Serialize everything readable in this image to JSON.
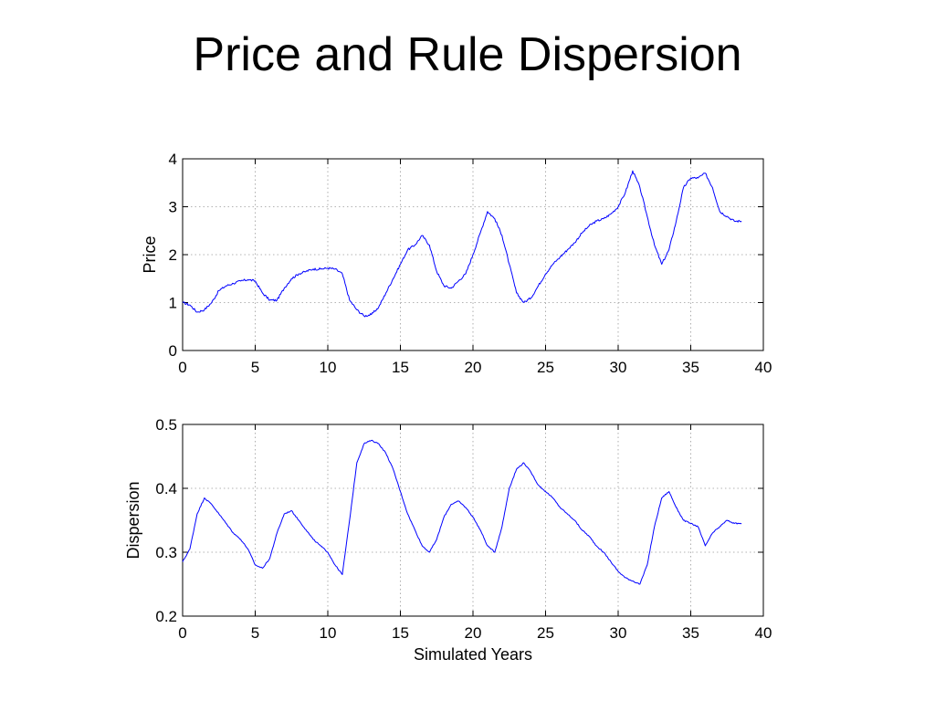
{
  "slide": {
    "title": "Price and Rule Dispersion"
  },
  "colors": {
    "line": "#0000ff",
    "axis": "#000000",
    "grid": "#9a9a9a"
  },
  "chart_data": [
    {
      "type": "line",
      "title": "",
      "xlabel": "",
      "ylabel": "Price",
      "xlim": [
        0,
        40
      ],
      "ylim": [
        0,
        4
      ],
      "xticks": [
        0,
        5,
        10,
        15,
        20,
        25,
        30,
        35,
        40
      ],
      "yticks": [
        0,
        1,
        2,
        3,
        4
      ],
      "grid": true,
      "series": [
        {
          "x": [
            0,
            0.5,
            1,
            1.5,
            2,
            2.5,
            3,
            3.5,
            4,
            4.5,
            5,
            5.5,
            6,
            6.5,
            7,
            7.5,
            8,
            8.5,
            9,
            9.5,
            10,
            10.5,
            11,
            11.5,
            12,
            12.5,
            13,
            13.5,
            14,
            14.5,
            15,
            15.5,
            16,
            16.5,
            17,
            17.5,
            18,
            18.5,
            19,
            19.5,
            20,
            20.5,
            21,
            21.5,
            22,
            22.5,
            23,
            23.5,
            24,
            24.5,
            25,
            25.5,
            26,
            26.5,
            27,
            27.5,
            28,
            28.5,
            29,
            29.5,
            30,
            30.5,
            31,
            31.5,
            32,
            32.5,
            33,
            33.5,
            34,
            34.5,
            35,
            35.5,
            36,
            36.5,
            37,
            37.5,
            38,
            38.5
          ],
          "y": [
            1.0,
            0.95,
            0.8,
            0.85,
            1.0,
            1.25,
            1.35,
            1.4,
            1.45,
            1.48,
            1.45,
            1.2,
            1.05,
            1.05,
            1.3,
            1.5,
            1.6,
            1.65,
            1.7,
            1.7,
            1.72,
            1.7,
            1.6,
            1.05,
            0.85,
            0.72,
            0.75,
            0.9,
            1.2,
            1.5,
            1.8,
            2.1,
            2.2,
            2.4,
            2.2,
            1.65,
            1.35,
            1.3,
            1.45,
            1.6,
            2.0,
            2.45,
            2.9,
            2.75,
            2.4,
            1.8,
            1.2,
            1.0,
            1.1,
            1.35,
            1.6,
            1.8,
            1.95,
            2.1,
            2.25,
            2.45,
            2.6,
            2.7,
            2.75,
            2.85,
            3.0,
            3.3,
            3.75,
            3.4,
            2.8,
            2.2,
            1.8,
            2.1,
            2.7,
            3.4,
            3.6,
            3.6,
            3.7,
            3.4,
            2.9,
            2.8,
            2.7,
            2.7
          ]
        }
      ]
    },
    {
      "type": "line",
      "title": "",
      "xlabel": "Simulated Years",
      "ylabel": "Dispersion",
      "xlim": [
        0,
        40
      ],
      "ylim": [
        0.2,
        0.5
      ],
      "xticks": [
        0,
        5,
        10,
        15,
        20,
        25,
        30,
        35,
        40
      ],
      "yticks": [
        0.2,
        0.3,
        0.4,
        0.5
      ],
      "ytick_labels": [
        "0.2",
        "0.3",
        "0.4",
        "0.5"
      ],
      "grid": true,
      "series": [
        {
          "x": [
            0,
            0.5,
            1,
            1.5,
            2,
            2.5,
            3,
            3.5,
            4,
            4.5,
            5,
            5.5,
            6,
            6.5,
            7,
            7.5,
            8,
            8.5,
            9,
            9.5,
            10,
            10.5,
            11,
            11.5,
            12,
            12.5,
            13,
            13.5,
            14,
            14.5,
            15,
            15.5,
            16,
            16.5,
            17,
            17.5,
            18,
            18.5,
            19,
            19.5,
            20,
            20.5,
            21,
            21.5,
            22,
            22.5,
            23,
            23.5,
            24,
            24.5,
            25,
            25.5,
            26,
            26.5,
            27,
            27.5,
            28,
            28.5,
            29,
            29.5,
            30,
            30.5,
            31,
            31.5,
            32,
            32.5,
            33,
            33.5,
            34,
            34.5,
            35,
            35.5,
            36,
            36.5,
            37,
            37.5,
            38,
            38.5
          ],
          "y": [
            0.285,
            0.305,
            0.36,
            0.385,
            0.375,
            0.36,
            0.345,
            0.33,
            0.32,
            0.305,
            0.28,
            0.275,
            0.29,
            0.33,
            0.36,
            0.365,
            0.35,
            0.335,
            0.32,
            0.31,
            0.3,
            0.28,
            0.265,
            0.35,
            0.44,
            0.47,
            0.475,
            0.47,
            0.455,
            0.43,
            0.395,
            0.36,
            0.335,
            0.31,
            0.3,
            0.32,
            0.355,
            0.375,
            0.38,
            0.37,
            0.355,
            0.335,
            0.31,
            0.3,
            0.34,
            0.4,
            0.43,
            0.44,
            0.425,
            0.405,
            0.395,
            0.385,
            0.37,
            0.36,
            0.35,
            0.335,
            0.325,
            0.31,
            0.3,
            0.285,
            0.27,
            0.26,
            0.255,
            0.25,
            0.28,
            0.34,
            0.385,
            0.395,
            0.37,
            0.35,
            0.345,
            0.34,
            0.31,
            0.33,
            0.34,
            0.35,
            0.345,
            0.345
          ]
        }
      ]
    }
  ]
}
